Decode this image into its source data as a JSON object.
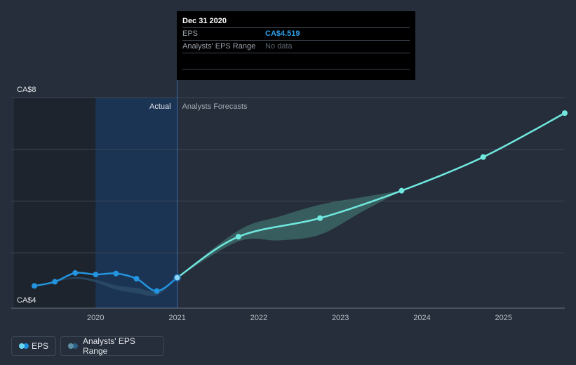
{
  "chart_data": {
    "type": "line",
    "xlim": [
      2019.0,
      2025.75
    ],
    "ylim": [
      3.93,
      8.0
    ],
    "ytick_labels": [
      {
        "value": 8,
        "label": "CA$8"
      },
      {
        "value": 4,
        "label": "CA$4"
      }
    ],
    "y_gridlines": [
      8,
      7,
      6,
      5
    ],
    "xticks": [
      {
        "value": 2020,
        "label": "2020"
      },
      {
        "value": 2021,
        "label": "2021"
      },
      {
        "value": 2022,
        "label": "2022"
      },
      {
        "value": 2023,
        "label": "2023"
      },
      {
        "value": 2024,
        "label": "2024"
      },
      {
        "value": 2025,
        "label": "2025"
      }
    ],
    "divider_x": 2021.0,
    "actual_label": "Actual",
    "forecast_label": "Analysts Forecasts",
    "eps_actual": [
      {
        "x": 2019.25,
        "y": 4.36
      },
      {
        "x": 2019.5,
        "y": 4.44
      },
      {
        "x": 2019.75,
        "y": 4.61
      },
      {
        "x": 2020.0,
        "y": 4.58
      },
      {
        "x": 2020.25,
        "y": 4.6
      },
      {
        "x": 2020.5,
        "y": 4.5
      },
      {
        "x": 2020.75,
        "y": 4.26
      },
      {
        "x": 2021.0,
        "y": 4.519
      }
    ],
    "eps_forecast": [
      {
        "x": 2021.0,
        "y": 4.519
      },
      {
        "x": 2021.75,
        "y": 5.31
      },
      {
        "x": 2022.75,
        "y": 5.67
      },
      {
        "x": 2023.75,
        "y": 6.2
      },
      {
        "x": 2024.75,
        "y": 6.85
      },
      {
        "x": 2025.75,
        "y": 7.7
      }
    ],
    "range_actual": {
      "upper": [
        {
          "x": 2019.5,
          "y": 4.44
        },
        {
          "x": 2019.75,
          "y": 4.53
        },
        {
          "x": 2020.0,
          "y": 4.48
        },
        {
          "x": 2020.25,
          "y": 4.37
        },
        {
          "x": 2020.5,
          "y": 4.32
        },
        {
          "x": 2020.75,
          "y": 4.26
        },
        {
          "x": 2021.0,
          "y": 4.519
        }
      ],
      "lower": [
        {
          "x": 2021.0,
          "y": 4.519
        },
        {
          "x": 2020.75,
          "y": 4.18
        },
        {
          "x": 2020.5,
          "y": 4.22
        },
        {
          "x": 2020.25,
          "y": 4.29
        },
        {
          "x": 2020.0,
          "y": 4.43
        },
        {
          "x": 2019.75,
          "y": 4.5
        },
        {
          "x": 2019.5,
          "y": 4.44
        }
      ]
    },
    "range_forecast": {
      "upper": [
        {
          "x": 2021.0,
          "y": 4.519
        },
        {
          "x": 2021.75,
          "y": 5.43
        },
        {
          "x": 2022.25,
          "y": 5.7
        },
        {
          "x": 2022.75,
          "y": 5.93
        },
        {
          "x": 2023.25,
          "y": 6.07
        },
        {
          "x": 2023.75,
          "y": 6.2
        }
      ],
      "lower": [
        {
          "x": 2023.75,
          "y": 6.2
        },
        {
          "x": 2023.25,
          "y": 5.78
        },
        {
          "x": 2022.75,
          "y": 5.35
        },
        {
          "x": 2022.25,
          "y": 5.24
        },
        {
          "x": 2021.75,
          "y": 5.22
        },
        {
          "x": 2021.0,
          "y": 4.519
        }
      ]
    },
    "colors": {
      "background": "#262e3b",
      "actual_line": "#2394df",
      "forecast_line": "#70e8de",
      "range_fill_actual": "#2a4c6a",
      "range_fill_forecast": "#3f6d6c",
      "highlight_band": "#1b3558",
      "past_shade": "#1e242d",
      "grid": "#3d4654"
    }
  },
  "tooltip": {
    "date": "Dec 31 2020",
    "eps_label": "EPS",
    "eps_value": "CA$4.519",
    "range_label": "Analysts' EPS Range",
    "range_value": "No data"
  },
  "legend": {
    "eps": "EPS",
    "range": "Analysts' EPS Range",
    "eps_colors": [
      "#6ad7f0",
      "#1f8fdc"
    ],
    "range_colors": [
      "#5e8fa4",
      "#2b5e83"
    ]
  }
}
